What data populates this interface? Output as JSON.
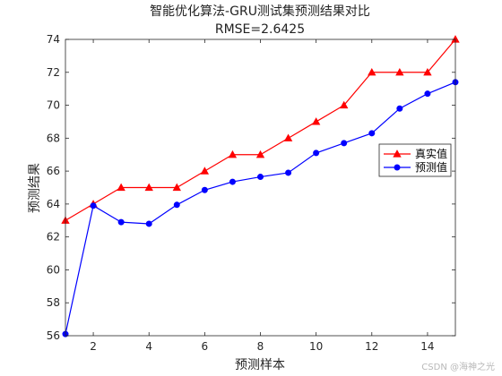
{
  "chart_data": {
    "type": "line",
    "title": "智能优化算法-GRU测试集预测结果对比",
    "subtitle": "RMSE=2.6425",
    "xlabel": "预测样本",
    "ylabel": "预测结果",
    "xlim": [
      1,
      15
    ],
    "ylim": [
      56,
      74
    ],
    "xticks": [
      2,
      4,
      6,
      8,
      10,
      12,
      14
    ],
    "yticks": [
      56,
      58,
      60,
      62,
      64,
      66,
      68,
      70,
      72,
      74
    ],
    "grid": false,
    "legend": "right",
    "x": [
      1,
      2,
      3,
      4,
      5,
      6,
      7,
      8,
      9,
      10,
      11,
      12,
      13,
      14,
      15
    ],
    "series": [
      {
        "name": "真实值",
        "color": "#ff0000",
        "marker": "triangle",
        "values": [
          63,
          64,
          65,
          65,
          65,
          66,
          67,
          67,
          68,
          69,
          70,
          72,
          72,
          72,
          74
        ]
      },
      {
        "name": "预测值",
        "color": "#0000ff",
        "marker": "circle",
        "values": [
          56.1,
          63.9,
          62.9,
          62.8,
          63.95,
          64.85,
          65.35,
          65.65,
          65.9,
          67.1,
          67.7,
          68.3,
          69.8,
          70.7,
          71.4
        ]
      }
    ]
  },
  "watermark": "CSDN @海神之光"
}
